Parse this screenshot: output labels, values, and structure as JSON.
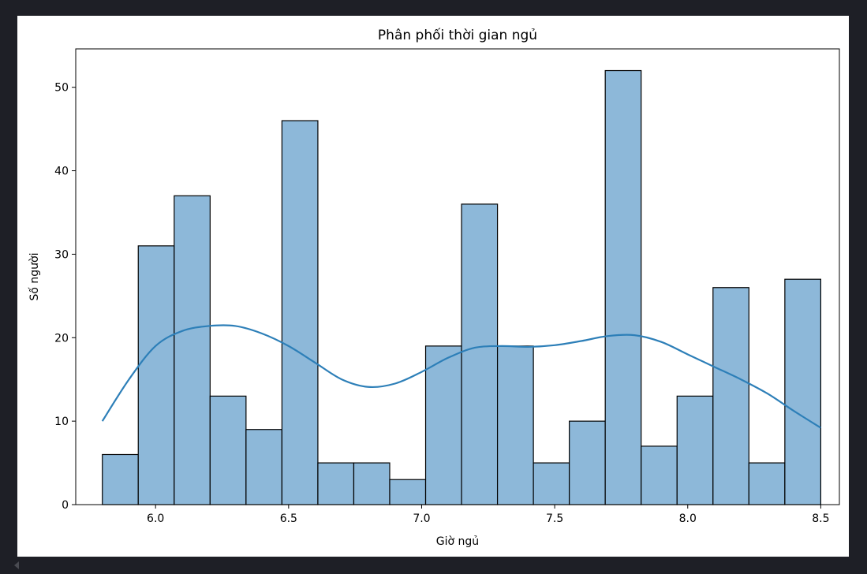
{
  "colors": {
    "bar_fill": "#8db8d9",
    "bar_edge": "#000000",
    "kde_line": "#2d7fb8",
    "background": "#ffffff",
    "frame": "#1e1f26"
  },
  "chart_data": {
    "type": "bar",
    "title": "Phân phối thời gian ngủ",
    "xlabel": "Giờ ngủ",
    "ylabel": "Số người",
    "xlim": [
      5.7,
      8.57
    ],
    "ylim": [
      0,
      54.6
    ],
    "grid": false,
    "bins": [
      {
        "x0": 5.8,
        "x1": 5.935,
        "count": 6
      },
      {
        "x0": 5.935,
        "x1": 6.07,
        "count": 31
      },
      {
        "x0": 6.07,
        "x1": 6.205,
        "count": 37
      },
      {
        "x0": 6.205,
        "x1": 6.34,
        "count": 13
      },
      {
        "x0": 6.34,
        "x1": 6.475,
        "count": 9
      },
      {
        "x0": 6.475,
        "x1": 6.61,
        "count": 46
      },
      {
        "x0": 6.61,
        "x1": 6.745,
        "count": 5
      },
      {
        "x0": 6.745,
        "x1": 6.88,
        "count": 5
      },
      {
        "x0": 6.88,
        "x1": 7.015,
        "count": 3
      },
      {
        "x0": 7.015,
        "x1": 7.15,
        "count": 19
      },
      {
        "x0": 7.15,
        "x1": 7.285,
        "count": 36
      },
      {
        "x0": 7.285,
        "x1": 7.42,
        "count": 19
      },
      {
        "x0": 7.42,
        "x1": 7.555,
        "count": 5
      },
      {
        "x0": 7.555,
        "x1": 7.69,
        "count": 10
      },
      {
        "x0": 7.69,
        "x1": 7.825,
        "count": 52
      },
      {
        "x0": 7.825,
        "x1": 7.96,
        "count": 7
      },
      {
        "x0": 7.96,
        "x1": 8.095,
        "count": 13
      },
      {
        "x0": 8.095,
        "x1": 8.23,
        "count": 26
      },
      {
        "x0": 8.23,
        "x1": 8.365,
        "count": 5
      },
      {
        "x0": 8.365,
        "x1": 8.5,
        "count": 27
      }
    ],
    "kde": {
      "x": [
        5.8,
        5.9,
        6.0,
        6.1,
        6.2,
        6.3,
        6.4,
        6.5,
        6.6,
        6.7,
        6.8,
        6.9,
        7.0,
        7.1,
        7.2,
        7.3,
        7.4,
        7.5,
        7.6,
        7.7,
        7.8,
        7.9,
        8.0,
        8.1,
        8.2,
        8.3,
        8.4,
        8.5
      ],
      "y": [
        10.0,
        15.0,
        19.0,
        20.8,
        21.4,
        21.4,
        20.5,
        19.0,
        17.0,
        15.0,
        14.1,
        14.5,
        15.9,
        17.6,
        18.8,
        19.0,
        18.9,
        19.1,
        19.6,
        20.2,
        20.3,
        19.5,
        18.0,
        16.5,
        15.0,
        13.3,
        11.2,
        9.2
      ]
    },
    "x_ticks": [
      6.0,
      6.5,
      7.0,
      7.5,
      8.0,
      8.5
    ],
    "x_tick_labels": [
      "6.0",
      "6.5",
      "7.0",
      "7.5",
      "8.0",
      "8.5"
    ],
    "y_ticks": [
      0,
      10,
      20,
      30,
      40,
      50
    ],
    "y_tick_labels": [
      "0",
      "10",
      "20",
      "30",
      "40",
      "50"
    ]
  }
}
